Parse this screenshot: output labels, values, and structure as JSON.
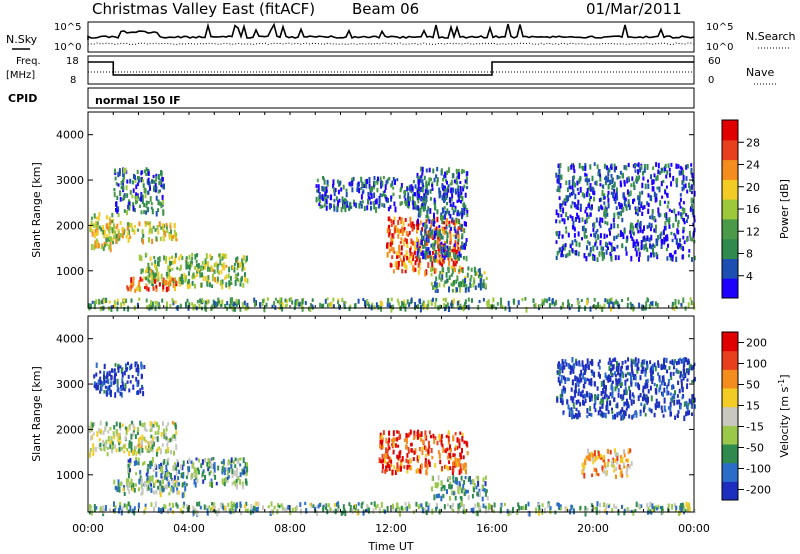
{
  "header": {
    "title": "Christmas Valley East (fitACF)",
    "beam": "Beam 06",
    "date": "01/Mar/2011"
  },
  "nsky_panel": {
    "left_label": "N.Sky",
    "right_label": "N.Search",
    "left_ticks": [
      "10^5",
      "10^0"
    ],
    "right_ticks": [
      "10^5",
      "10^0"
    ]
  },
  "freq_panel": {
    "left_label_1": "Freq.",
    "left_label_2": "[MHz]",
    "right_label": "Nave",
    "left_ticks": [
      "18",
      "8"
    ],
    "right_ticks": [
      "60",
      "0"
    ]
  },
  "cpid_panel": {
    "label": "CPID",
    "mode_text": "normal 150 IF"
  },
  "colors": {
    "power": [
      "#1e00ff",
      "#1d4fb3",
      "#2f8a4e",
      "#4a9a4a",
      "#9cc83a",
      "#f2cc24",
      "#f58c1e",
      "#e8401c",
      "#e00000"
    ],
    "velocity": [
      "#1e2fbf",
      "#2a6cc8",
      "#2f8a4e",
      "#9ac84a",
      "#c8c8c0",
      "#f2cc24",
      "#f58c1e",
      "#e8401c",
      "#e00000"
    ]
  },
  "chart_data": [
    {
      "type": "heatmap",
      "name": "power",
      "ylabel": "Slant Range [km]",
      "ylim": [
        180,
        4500
      ],
      "xlim": [
        0,
        24
      ],
      "y_ticks": [
        "1000",
        "2000",
        "3000",
        "4000"
      ],
      "colorbar_label": "Power [dB]",
      "colorbar_ticks": [
        "4",
        "8",
        "12",
        "16",
        "20",
        "24",
        "28"
      ],
      "scatter_regions": [
        {
          "t": [
            0.0,
            1.2
          ],
          "r": [
            1500,
            2300
          ],
          "level": 0.55
        },
        {
          "t": [
            0.8,
            3.5
          ],
          "r": [
            1700,
            2100
          ],
          "level": 0.55
        },
        {
          "t": [
            1.0,
            3.0
          ],
          "r": [
            2300,
            3300
          ],
          "level": 0.25
        },
        {
          "t": [
            2.0,
            6.3
          ],
          "r": [
            700,
            1400
          ],
          "level": 0.45
        },
        {
          "t": [
            1.5,
            3.5
          ],
          "r": [
            600,
            900
          ],
          "level": 0.7
        },
        {
          "t": [
            9.0,
            13.5
          ],
          "r": [
            2400,
            3100
          ],
          "level": 0.2
        },
        {
          "t": [
            11.8,
            14.8
          ],
          "r": [
            1000,
            2200
          ],
          "level": 0.8
        },
        {
          "t": [
            13.5,
            15.8
          ],
          "r": [
            600,
            1100
          ],
          "level": 0.35
        },
        {
          "t": [
            13.0,
            15.0
          ],
          "r": [
            1300,
            3300
          ],
          "level": 0.2
        },
        {
          "t": [
            18.5,
            24.0
          ],
          "r": [
            1300,
            3400
          ],
          "level": 0.15
        },
        {
          "t": [
            0.0,
            24.0
          ],
          "r": [
            200,
            420
          ],
          "level": 0.35
        }
      ]
    },
    {
      "type": "heatmap",
      "name": "velocity",
      "ylabel": "Slant Range [km]",
      "xlabel": "Time UT",
      "ylim": [
        180,
        4500
      ],
      "xlim": [
        0,
        24
      ],
      "y_ticks": [
        "1000",
        "2000",
        "3000",
        "4000"
      ],
      "x_ticks": [
        "00:00",
        "04:00",
        "08:00",
        "12:00",
        "16:00",
        "20:00",
        "00:00"
      ],
      "x_tick_values": [
        0,
        4,
        8,
        12,
        16,
        20,
        24
      ],
      "colorbar_label": "Velocity [m s^-1]",
      "colorbar_ticks": [
        "200",
        "100",
        "50",
        "15",
        "-15",
        "-50",
        "-100",
        "-200"
      ],
      "scatter_regions": [
        {
          "t": [
            0.2,
            2.2
          ],
          "r": [
            2800,
            3500
          ],
          "level": 0.05
        },
        {
          "t": [
            0.0,
            3.5
          ],
          "r": [
            1500,
            2200
          ],
          "level": 0.45
        },
        {
          "t": [
            1.5,
            6.3
          ],
          "r": [
            800,
            1400
          ],
          "level": 0.3
        },
        {
          "t": [
            1.0,
            4.0
          ],
          "r": [
            600,
            900
          ],
          "level": 0.35
        },
        {
          "t": [
            11.5,
            15.0
          ],
          "r": [
            1100,
            2000
          ],
          "level": 0.85
        },
        {
          "t": [
            13.5,
            15.8
          ],
          "r": [
            500,
            1000
          ],
          "level": 0.3
        },
        {
          "t": [
            18.5,
            24.0
          ],
          "r": [
            2300,
            3600
          ],
          "level": 0.05
        },
        {
          "t": [
            19.5,
            21.5
          ],
          "r": [
            1000,
            1600
          ],
          "level": 0.65
        },
        {
          "t": [
            0.0,
            24.0
          ],
          "r": [
            200,
            420
          ],
          "level": 0.35
        }
      ]
    }
  ]
}
